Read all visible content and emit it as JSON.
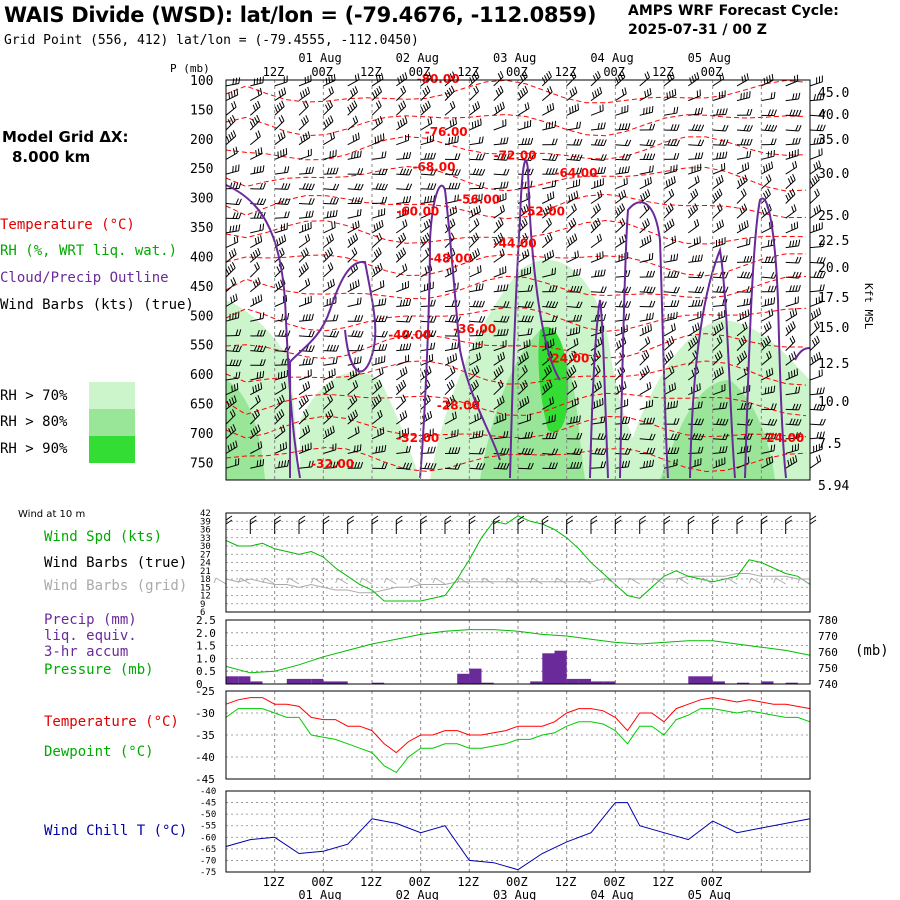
{
  "header": {
    "title": "WAIS Divide (WSD):  lat/lon = (-79.4676, -112.0859)",
    "grid_point": "Grid Point (556, 412) lat/lon = (-79.4555, -112.0450)",
    "cycle_label": "AMPS WRF Forecast Cycle:",
    "cycle_value": "2025-07-31 / 00  Z"
  },
  "model_grid": {
    "label": "Model Grid ΔX:",
    "value": "8.000 km"
  },
  "legend": {
    "temperature": "Temperature (°C)",
    "rh": "RH (%, WRT liq. wat.)",
    "cloud": "Cloud/Precip Outline",
    "wind": "Wind Barbs (kts) (true)",
    "rh70": "RH > 70%",
    "rh80": "RH > 80%",
    "rh90": "RH > 90%"
  },
  "colors": {
    "temperature": "#ff0000",
    "rh_label": "#00aa00",
    "cloud": "#6a2a9a",
    "rh70": "#ccf5cc",
    "rh80": "#99e699",
    "rh90": "#33dd33",
    "precip": "#6a2a9a",
    "pressure": "#00bb00",
    "dewpoint": "#00cc00",
    "windchill": "#0000aa",
    "wind_grid": "#aaaaaa"
  },
  "time_axis": {
    "top_hours": [
      "12Z",
      "00Z",
      "12Z",
      "00Z",
      "12Z",
      "00Z",
      "12Z",
      "00Z",
      "12Z",
      "00Z"
    ],
    "top_dates": [
      "01 Aug",
      "02 Aug",
      "03 Aug",
      "04 Aug",
      "05 Aug"
    ],
    "bottom_hours": [
      "12Z",
      "00Z",
      "12Z",
      "00Z",
      "12Z",
      "00Z",
      "12Z",
      "00Z",
      "12Z",
      "00Z"
    ],
    "bottom_dates": [
      "01 Aug",
      "02 Aug",
      "03 Aug",
      "04 Aug",
      "05 Aug"
    ]
  },
  "chart_data": [
    {
      "type": "heatmap",
      "ylabel": "P (mb)",
      "y2label": "Kft MSL",
      "p_ticks": [
        "100",
        "150",
        "200",
        "250",
        "300",
        "350",
        "400",
        "450",
        "500",
        "550",
        "600",
        "650",
        "700",
        "750"
      ],
      "kft_ticks": [
        "45.0",
        "40.0",
        "35.0",
        "30.0",
        "25.0",
        "22.5",
        "20.0",
        "17.5",
        "15.0",
        "12.5",
        "10.0",
        "7.5",
        "5.94"
      ],
      "ylim": [
        100,
        780
      ],
      "temperature_labels": [
        {
          "text": "-80.00",
          "hour": 47,
          "p": 105
        },
        {
          "text": "-76.00",
          "hour": 49,
          "p": 195
        },
        {
          "text": "-68.00",
          "hour": 46,
          "p": 255
        },
        {
          "text": "-72.00",
          "hour": 66,
          "p": 235
        },
        {
          "text": "-64.00",
          "hour": 81,
          "p": 265
        },
        {
          "text": "-60.00",
          "hour": 42,
          "p": 330
        },
        {
          "text": "-56.00",
          "hour": 57,
          "p": 310
        },
        {
          "text": "-52.00",
          "hour": 73,
          "p": 330
        },
        {
          "text": "-48.00",
          "hour": 50,
          "p": 410
        },
        {
          "text": "-44.00",
          "hour": 66,
          "p": 385
        },
        {
          "text": "-40.00",
          "hour": 40,
          "p": 540
        },
        {
          "text": "-36.00",
          "hour": 56,
          "p": 530
        },
        {
          "text": "-24.00",
          "hour": 79,
          "p": 580
        },
        {
          "text": "-28.00",
          "hour": 52,
          "p": 660
        },
        {
          "text": "-32.00",
          "hour": 42,
          "p": 715
        },
        {
          "text": "-24.00",
          "hour": 132,
          "p": 715
        },
        {
          "text": "-32.00",
          "hour": 21,
          "p": 760
        }
      ]
    },
    {
      "type": "line",
      "title": "Wind at 10 m",
      "series_label_speed": "Wind Spd (kts)",
      "series_label_true": "Wind Barbs (true)",
      "series_label_grid": "Wind Barbs (grid)",
      "y_ticks": [
        "42",
        "39",
        "36",
        "33",
        "30",
        "27",
        "24",
        "21",
        "18",
        "15",
        "12",
        "9",
        "6"
      ],
      "ylim": [
        6,
        42
      ],
      "x_hours": [
        0,
        3,
        6,
        9,
        12,
        15,
        18,
        21,
        24,
        27,
        30,
        33,
        36,
        39,
        42,
        45,
        48,
        51,
        54,
        57,
        60,
        63,
        66,
        69,
        72,
        75,
        78,
        81,
        84,
        87,
        90,
        93,
        96,
        99,
        102,
        105,
        108,
        111,
        114,
        117,
        120,
        123,
        126,
        129,
        132,
        135,
        138,
        141,
        144
      ],
      "speed": [
        32,
        30,
        30,
        31,
        29,
        28,
        27,
        28,
        26,
        22,
        19,
        16,
        14,
        10,
        10,
        10,
        10,
        11,
        12,
        18,
        25,
        33,
        39,
        38,
        41,
        39,
        38,
        36,
        33,
        29,
        24,
        20,
        16,
        12,
        11,
        15,
        19,
        21,
        19,
        18,
        17,
        18,
        19,
        25,
        24,
        22,
        20,
        19,
        16
      ],
      "grid_speed": [
        18,
        17,
        18,
        17,
        16,
        16,
        15,
        16,
        15,
        14,
        14,
        13,
        13,
        14,
        15,
        15,
        16,
        16,
        16,
        17,
        17,
        17,
        17,
        17,
        17,
        17,
        17,
        17,
        17,
        17,
        17,
        18,
        18,
        18,
        18,
        18,
        18,
        18,
        19,
        19,
        19,
        19,
        20,
        20,
        19,
        19,
        19,
        18,
        18
      ]
    },
    {
      "type": "bar",
      "series_label_precip": "Precip (mm)",
      "series_label_precip2": "liq. equiv.",
      "series_label_precip3": "3-hr accum",
      "series_label_pressure": "Pressure (mb)",
      "y_ticks": [
        "2.5",
        "2.0",
        "1.5",
        "1.0",
        "0.5",
        "0"
      ],
      "y2_ticks": [
        "780",
        "770",
        "760",
        "750",
        "740"
      ],
      "y2_unit": "(mb)",
      "ylim": [
        0,
        2.5
      ],
      "y2lim": [
        740,
        780
      ],
      "precip_hours": [
        3,
        6,
        9,
        18,
        21,
        24,
        27,
        30,
        39,
        60,
        63,
        66,
        78,
        81,
        84,
        87,
        90,
        93,
        96,
        117,
        120,
        123,
        129,
        135,
        141
      ],
      "precip_values": [
        0.3,
        0.3,
        0.1,
        0.2,
        0.2,
        0.2,
        0.1,
        0.1,
        0.05,
        0.4,
        0.6,
        0.05,
        0.1,
        1.2,
        1.3,
        0.2,
        0.2,
        0.1,
        0.1,
        0.3,
        0.3,
        0.1,
        0.05,
        0.1,
        0.05
      ],
      "pressure_x": [
        0,
        6,
        12,
        18,
        24,
        30,
        36,
        42,
        48,
        54,
        60,
        66,
        72,
        78,
        84,
        90,
        96,
        102,
        108,
        114,
        120,
        126,
        132,
        138,
        144
      ],
      "pressure": [
        751,
        747,
        748,
        752,
        757,
        761,
        765,
        768,
        771,
        773,
        774,
        774,
        773,
        771,
        770,
        768,
        766,
        765,
        766,
        767,
        767,
        765,
        763,
        761,
        758
      ]
    },
    {
      "type": "line",
      "series_label_temp": "Temperature (°C)",
      "series_label_dew": "Dewpoint (°C)",
      "y_ticks": [
        "-25",
        "-30",
        "-35",
        "-40",
        "-45"
      ],
      "ylim": [
        -45,
        -25
      ],
      "x_hours": [
        0,
        3,
        6,
        9,
        12,
        15,
        18,
        21,
        24,
        27,
        30,
        33,
        36,
        39,
        42,
        45,
        48,
        51,
        54,
        57,
        60,
        63,
        66,
        69,
        72,
        75,
        78,
        81,
        84,
        87,
        90,
        93,
        96,
        99,
        102,
        105,
        108,
        111,
        114,
        117,
        120,
        123,
        126,
        129,
        132,
        135,
        138,
        141,
        144
      ],
      "temperature": [
        -28,
        -27,
        -26.5,
        -26.5,
        -28,
        -28,
        -28.5,
        -31,
        -31.5,
        -31.5,
        -33,
        -33,
        -34,
        -37,
        -39,
        -36.5,
        -35,
        -35,
        -34,
        -34,
        -35,
        -35,
        -34.5,
        -34,
        -33,
        -33,
        -33,
        -32,
        -30,
        -29,
        -29,
        -29.5,
        -31,
        -34,
        -30,
        -30,
        -32,
        -29,
        -28,
        -27,
        -26.5,
        -27,
        -27.5,
        -27,
        -27.5,
        -28,
        -28,
        -28.5,
        -29
      ],
      "dewpoint": [
        -31,
        -29,
        -29,
        -29,
        -30,
        -31,
        -31,
        -35,
        -35.5,
        -36,
        -37,
        -38,
        -39,
        -42,
        -43.5,
        -40,
        -38,
        -38,
        -37,
        -37,
        -38,
        -38,
        -37.5,
        -37,
        -36,
        -36,
        -35,
        -34.5,
        -33,
        -32,
        -32,
        -32.5,
        -34,
        -37,
        -33,
        -33,
        -35,
        -31.5,
        -30.5,
        -29,
        -29,
        -29.5,
        -30,
        -29.5,
        -30,
        -30.5,
        -31,
        -31,
        -32
      ]
    },
    {
      "type": "line",
      "series_label": "Wind Chill T (°C)",
      "y_ticks": [
        "-40",
        "-45",
        "-50",
        "-55",
        "-60",
        "-65",
        "-70",
        "-75"
      ],
      "ylim": [
        -75,
        -40
      ],
      "x_hours": [
        0,
        6,
        12,
        18,
        24,
        30,
        36,
        42,
        48,
        54,
        60,
        66,
        72,
        78,
        84,
        90,
        96,
        99,
        102,
        108,
        114,
        120,
        126,
        132,
        138,
        144
      ],
      "windchill": [
        -64,
        -61,
        -60,
        -67,
        -66,
        -63,
        -52,
        -54,
        -58,
        -55,
        -70,
        -71,
        -74,
        -67,
        -62,
        -58,
        -45,
        -45,
        -55,
        -58,
        -61,
        -53,
        -58,
        -56,
        -54,
        -52
      ]
    }
  ]
}
